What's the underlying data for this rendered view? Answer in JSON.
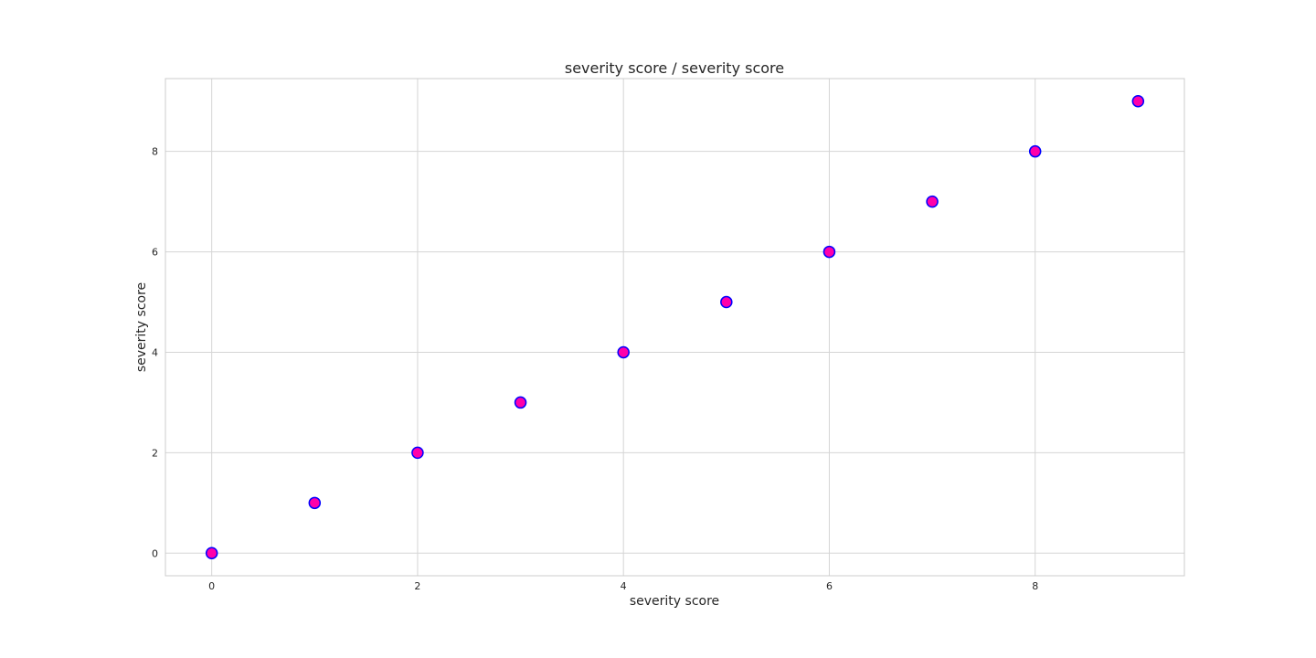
{
  "chart_data": {
    "type": "scatter",
    "title": "severity score / severity score",
    "xlabel": "severity score",
    "ylabel": "severity score",
    "x": [
      0,
      1,
      2,
      3,
      4,
      5,
      6,
      7,
      8,
      9
    ],
    "y": [
      0,
      1,
      2,
      3,
      4,
      5,
      6,
      7,
      8,
      9
    ],
    "xlim": [
      -0.45,
      9.45
    ],
    "ylim": [
      -0.45,
      9.45
    ],
    "xticks": [
      0,
      2,
      4,
      6,
      8
    ],
    "yticks": [
      0,
      2,
      4,
      6,
      8
    ],
    "grid": true,
    "marker_fill": "#ff00aa",
    "marker_edge": "#0000ff"
  }
}
